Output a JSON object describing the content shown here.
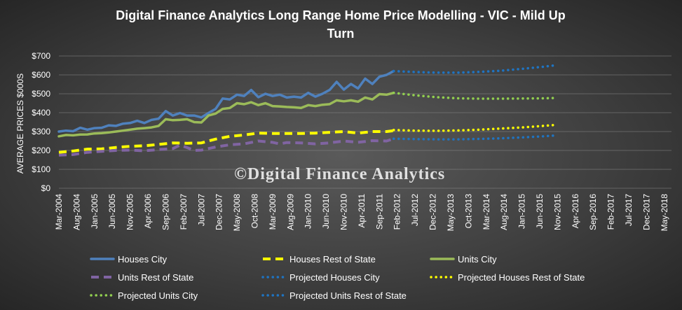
{
  "chart_data": {
    "type": "line",
    "title": "Digital Finance Analytics Long Range Home Price Modelling  - VIC - Mild Up Turn",
    "title_lines": [
      "Digital Finance Analytics Long Range Home Price Modelling  - VIC - Mild Up",
      "Turn"
    ],
    "xlabel": "",
    "ylabel": "AVERAGE PRICES $000S",
    "ylim": [
      0,
      700
    ],
    "y_ticks": [
      0,
      100,
      200,
      300,
      400,
      500,
      600,
      700
    ],
    "y_tick_labels": [
      "$0",
      "$100",
      "$200",
      "$300",
      "$400",
      "$500",
      "$600",
      "$700"
    ],
    "x_labels": [
      "Mar-2004",
      "Aug-2004",
      "Jan-2005",
      "Jun-2005",
      "Nov-2005",
      "Apr-2006",
      "Sep-2006",
      "Feb-2007",
      "Jul-2007",
      "Dec-2007",
      "May-2008",
      "Oct-2008",
      "Mar-2009",
      "Aug-2009",
      "Jan-2010",
      "Jun-2010",
      "Nov-2010",
      "Apr-2011",
      "Sep-2011",
      "Feb-2012",
      "Jul-2012",
      "Dec-2012",
      "May-2013",
      "Oct-2013",
      "Mar-2014",
      "Aug-2014",
      "Jan-2015",
      "Jun-2015",
      "Nov-2015",
      "Apr-2016",
      "Sep-2016",
      "Feb-2017",
      "Jul-2017",
      "Dec-2017",
      "May-2018"
    ],
    "months_per_label": 5,
    "grid": true,
    "legend_position": "bottom",
    "watermark": "©Digital Finance Analytics",
    "series": [
      {
        "name": "Houses City",
        "style": "solid",
        "color": "#4f81bd",
        "points": [
          [
            0,
            300
          ],
          [
            2,
            305
          ],
          [
            4,
            302
          ],
          [
            6,
            320
          ],
          [
            8,
            310
          ],
          [
            10,
            318
          ],
          [
            12,
            320
          ],
          [
            14,
            333
          ],
          [
            16,
            330
          ],
          [
            18,
            342
          ],
          [
            20,
            345
          ],
          [
            22,
            357
          ],
          [
            24,
            345
          ],
          [
            26,
            362
          ],
          [
            28,
            368
          ],
          [
            30,
            408
          ],
          [
            32,
            385
          ],
          [
            34,
            398
          ],
          [
            36,
            385
          ],
          [
            38,
            385
          ],
          [
            40,
            375
          ],
          [
            42,
            398
          ],
          [
            44,
            420
          ],
          [
            46,
            475
          ],
          [
            48,
            470
          ],
          [
            50,
            495
          ],
          [
            52,
            488
          ],
          [
            54,
            520
          ],
          [
            56,
            482
          ],
          [
            58,
            500
          ],
          [
            60,
            488
          ],
          [
            62,
            495
          ],
          [
            64,
            480
          ],
          [
            66,
            485
          ],
          [
            68,
            480
          ],
          [
            70,
            505
          ],
          [
            72,
            485
          ],
          [
            74,
            500
          ],
          [
            76,
            520
          ],
          [
            78,
            563
          ],
          [
            80,
            522
          ],
          [
            82,
            552
          ],
          [
            84,
            528
          ],
          [
            86,
            580
          ],
          [
            88,
            552
          ],
          [
            90,
            590
          ],
          [
            92,
            600
          ],
          [
            94,
            620
          ]
        ]
      },
      {
        "name": "Houses Rest of State",
        "style": "dash",
        "color": "#ffff00",
        "points": [
          [
            0,
            190
          ],
          [
            4,
            197
          ],
          [
            8,
            207
          ],
          [
            12,
            208
          ],
          [
            16,
            216
          ],
          [
            20,
            222
          ],
          [
            24,
            225
          ],
          [
            28,
            232
          ],
          [
            32,
            240
          ],
          [
            36,
            238
          ],
          [
            40,
            240
          ],
          [
            44,
            260
          ],
          [
            48,
            275
          ],
          [
            52,
            282
          ],
          [
            56,
            292
          ],
          [
            60,
            290
          ],
          [
            64,
            290
          ],
          [
            68,
            290
          ],
          [
            72,
            292
          ],
          [
            76,
            296
          ],
          [
            80,
            300
          ],
          [
            84,
            292
          ],
          [
            88,
            300
          ],
          [
            92,
            300
          ],
          [
            94,
            305
          ]
        ]
      },
      {
        "name": "Units City",
        "style": "solid",
        "color": "#9bbb59",
        "points": [
          [
            0,
            275
          ],
          [
            2,
            282
          ],
          [
            4,
            280
          ],
          [
            6,
            284
          ],
          [
            8,
            285
          ],
          [
            10,
            290
          ],
          [
            12,
            292
          ],
          [
            14,
            295
          ],
          [
            16,
            300
          ],
          [
            18,
            305
          ],
          [
            20,
            310
          ],
          [
            22,
            315
          ],
          [
            24,
            318
          ],
          [
            26,
            322
          ],
          [
            28,
            330
          ],
          [
            30,
            365
          ],
          [
            32,
            360
          ],
          [
            34,
            362
          ],
          [
            36,
            365
          ],
          [
            38,
            350
          ],
          [
            40,
            348
          ],
          [
            42,
            385
          ],
          [
            44,
            395
          ],
          [
            46,
            420
          ],
          [
            48,
            425
          ],
          [
            50,
            450
          ],
          [
            52,
            445
          ],
          [
            54,
            455
          ],
          [
            56,
            440
          ],
          [
            58,
            450
          ],
          [
            60,
            435
          ],
          [
            62,
            433
          ],
          [
            64,
            430
          ],
          [
            66,
            428
          ],
          [
            68,
            425
          ],
          [
            70,
            440
          ],
          [
            72,
            435
          ],
          [
            74,
            442
          ],
          [
            76,
            445
          ],
          [
            78,
            465
          ],
          [
            80,
            460
          ],
          [
            82,
            465
          ],
          [
            84,
            458
          ],
          [
            86,
            480
          ],
          [
            88,
            470
          ],
          [
            90,
            498
          ],
          [
            92,
            495
          ],
          [
            94,
            505
          ]
        ]
      },
      {
        "name": "Units Rest of State",
        "style": "dash",
        "color": "#8064a2",
        "points": [
          [
            0,
            175
          ],
          [
            4,
            178
          ],
          [
            8,
            190
          ],
          [
            12,
            195
          ],
          [
            16,
            200
          ],
          [
            20,
            202
          ],
          [
            24,
            198
          ],
          [
            28,
            205
          ],
          [
            32,
            210
          ],
          [
            34,
            228
          ],
          [
            36,
            215
          ],
          [
            38,
            200
          ],
          [
            40,
            202
          ],
          [
            44,
            218
          ],
          [
            48,
            230
          ],
          [
            52,
            235
          ],
          [
            56,
            250
          ],
          [
            60,
            243
          ],
          [
            62,
            235
          ],
          [
            64,
            242
          ],
          [
            68,
            240
          ],
          [
            72,
            235
          ],
          [
            76,
            240
          ],
          [
            80,
            250
          ],
          [
            84,
            243
          ],
          [
            88,
            252
          ],
          [
            92,
            250
          ],
          [
            94,
            262
          ]
        ]
      },
      {
        "name": "Projected Houses City",
        "style": "dot",
        "color": "#1f74c2",
        "points": [
          [
            94,
            620
          ],
          [
            100,
            615
          ],
          [
            106,
            612
          ],
          [
            112,
            612
          ],
          [
            118,
            616
          ],
          [
            124,
            622
          ],
          [
            130,
            632
          ],
          [
            136,
            643
          ],
          [
            140,
            652
          ]
        ]
      },
      {
        "name": "Projected Houses Rest of State",
        "style": "dot",
        "color": "#ffff00",
        "points": [
          [
            94,
            308
          ],
          [
            100,
            305
          ],
          [
            106,
            304
          ],
          [
            112,
            306
          ],
          [
            118,
            310
          ],
          [
            124,
            316
          ],
          [
            130,
            322
          ],
          [
            136,
            330
          ],
          [
            140,
            336
          ]
        ]
      },
      {
        "name": "Projected Units City",
        "style": "dot",
        "color": "#92d050",
        "points": [
          [
            94,
            505
          ],
          [
            100,
            492
          ],
          [
            106,
            482
          ],
          [
            112,
            476
          ],
          [
            118,
            474
          ],
          [
            124,
            474
          ],
          [
            130,
            475
          ],
          [
            136,
            476
          ],
          [
            140,
            478
          ]
        ]
      },
      {
        "name": "Projected Units Rest of State",
        "style": "dot",
        "color": "#1f74c2",
        "points": [
          [
            94,
            262
          ],
          [
            100,
            260
          ],
          [
            106,
            259
          ],
          [
            112,
            259
          ],
          [
            118,
            261
          ],
          [
            124,
            264
          ],
          [
            130,
            269
          ],
          [
            136,
            275
          ],
          [
            140,
            280
          ]
        ]
      }
    ]
  }
}
